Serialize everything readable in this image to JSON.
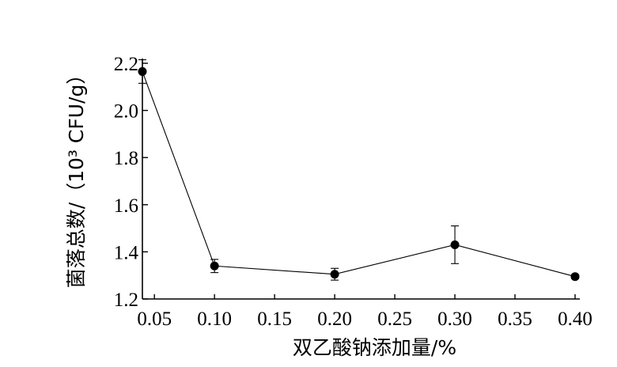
{
  "chart_data": {
    "type": "line",
    "xlabel": "双乙酸钠添加量/%",
    "ylabel": "菌落总数/（10³ CFU/g）",
    "x": [
      0.04,
      0.1,
      0.2,
      0.3,
      0.4
    ],
    "series": [
      {
        "values": [
          2.165,
          1.34,
          1.305,
          1.43,
          1.295
        ],
        "errors": [
          0.05,
          0.028,
          0.025,
          0.08,
          0.008
        ]
      }
    ],
    "x_ticks": [
      "0.05",
      "0.10",
      "0.15",
      "0.20",
      "0.25",
      "0.30",
      "0.35",
      "0.40"
    ],
    "x_tick_values": [
      0.05,
      0.1,
      0.15,
      0.2,
      0.25,
      0.3,
      0.35,
      0.4
    ],
    "y_ticks": [
      "1.2",
      "1.4",
      "1.6",
      "1.8",
      "2.0",
      "2.2"
    ],
    "y_tick_values": [
      1.2,
      1.4,
      1.6,
      1.8,
      2.0,
      2.2
    ],
    "xlim": [
      0.04,
      0.4
    ],
    "ylim": [
      1.2,
      2.2
    ],
    "grid": false,
    "markers": "filled-circle",
    "color": "#000000"
  }
}
